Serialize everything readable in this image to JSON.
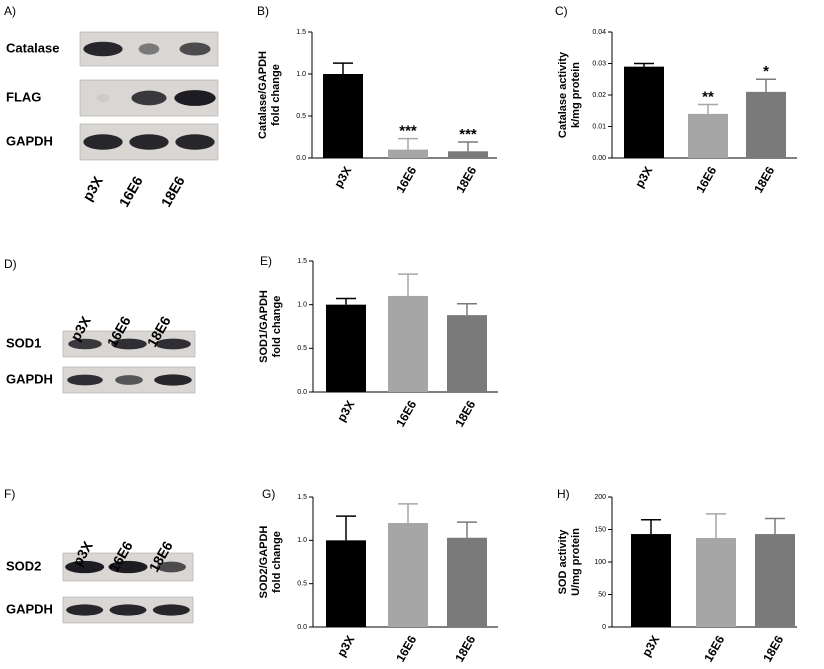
{
  "chart_data": [
    {
      "type": "bar",
      "panel": "B)",
      "ylabel": [
        "Catalase/GAPDH",
        "fold change"
      ],
      "categories": [
        "p3X",
        "16E6",
        "18E6"
      ],
      "colors": [
        "#000000",
        "#a6a6a6",
        "#7a7a7a"
      ],
      "values": [
        1.0,
        0.1,
        0.08
      ],
      "errors": [
        0.13,
        0.13,
        0.11
      ],
      "annotations": [
        null,
        "***",
        "***"
      ],
      "ylim": [
        0,
        1.5
      ],
      "yticks": [
        {
          "value": 0,
          "label": "0.0"
        },
        0.5,
        {
          "value": 1,
          "label": "1.0"
        },
        1.5
      ]
    },
    {
      "type": "bar",
      "panel": "C)",
      "ylabel": [
        "Catalase activity",
        "k/mg protein"
      ],
      "categories": [
        "p3X",
        "16E6",
        "18E6"
      ],
      "colors": [
        "#000000",
        "#a6a6a6",
        "#7a7a7a"
      ],
      "values": [
        0.029,
        0.014,
        0.021
      ],
      "errors": [
        0.001,
        0.003,
        0.004
      ],
      "annotations": [
        null,
        "**",
        "*"
      ],
      "ylim": [
        0,
        0.04
      ],
      "yticks": [
        {
          "value": 0,
          "label": "0.00"
        },
        0.01,
        0.02,
        0.03,
        0.04
      ]
    },
    {
      "type": "bar",
      "panel": "E)",
      "ylabel": [
        "SOD1/GAPDH",
        "fold change"
      ],
      "categories": [
        "p3X",
        "16E6",
        "18E6"
      ],
      "colors": [
        "#000000",
        "#a6a6a6",
        "#7a7a7a"
      ],
      "values": [
        1.0,
        1.1,
        0.88
      ],
      "errors": [
        0.07,
        0.25,
        0.13
      ],
      "annotations": [
        null,
        null,
        null
      ],
      "ylim": [
        0,
        1.5
      ],
      "yticks": [
        {
          "value": 0,
          "label": "0.0"
        },
        0.5,
        {
          "value": 1,
          "label": "1.0"
        },
        1.5
      ]
    },
    {
      "type": "bar",
      "panel": "G)",
      "ylabel": [
        "SOD2/GAPDH",
        "fold change"
      ],
      "categories": [
        "p3X",
        "16E6",
        "18E6"
      ],
      "colors": [
        "#000000",
        "#a6a6a6",
        "#7a7a7a"
      ],
      "values": [
        1.0,
        1.2,
        1.03
      ],
      "errors": [
        0.28,
        0.22,
        0.18
      ],
      "annotations": [
        null,
        null,
        null
      ],
      "ylim": [
        0,
        1.5
      ],
      "yticks": [
        {
          "value": 0,
          "label": "0.0"
        },
        0.5,
        {
          "value": 1,
          "label": "1.0"
        },
        1.5
      ]
    },
    {
      "type": "bar",
      "panel": "H)",
      "ylabel": [
        "SOD activity",
        "U/mg protein"
      ],
      "categories": [
        "p3X",
        "16E6",
        "18E6"
      ],
      "colors": [
        "#000000",
        "#a6a6a6",
        "#7a7a7a"
      ],
      "values": [
        143,
        137,
        143
      ],
      "errors": [
        22,
        37,
        24
      ],
      "annotations": [
        null,
        null,
        null
      ],
      "ylim": [
        0,
        200
      ],
      "yticks": [
        0,
        50,
        100,
        150,
        200
      ]
    }
  ],
  "blots": [
    {
      "panel": "A)",
      "rows": [
        "Catalase",
        "FLAG",
        "GAPDH"
      ],
      "lanes": [
        "p3X",
        "16E6",
        "18E6"
      ]
    },
    {
      "panel": "D)",
      "rows": [
        "SOD1",
        "GAPDH"
      ],
      "lanes": [
        "p3X",
        "16E6",
        "18E6"
      ]
    },
    {
      "panel": "F)",
      "rows": [
        "SOD2",
        "GAPDH"
      ],
      "lanes": [
        "p3X",
        "16E6",
        "18E6"
      ]
    }
  ]
}
